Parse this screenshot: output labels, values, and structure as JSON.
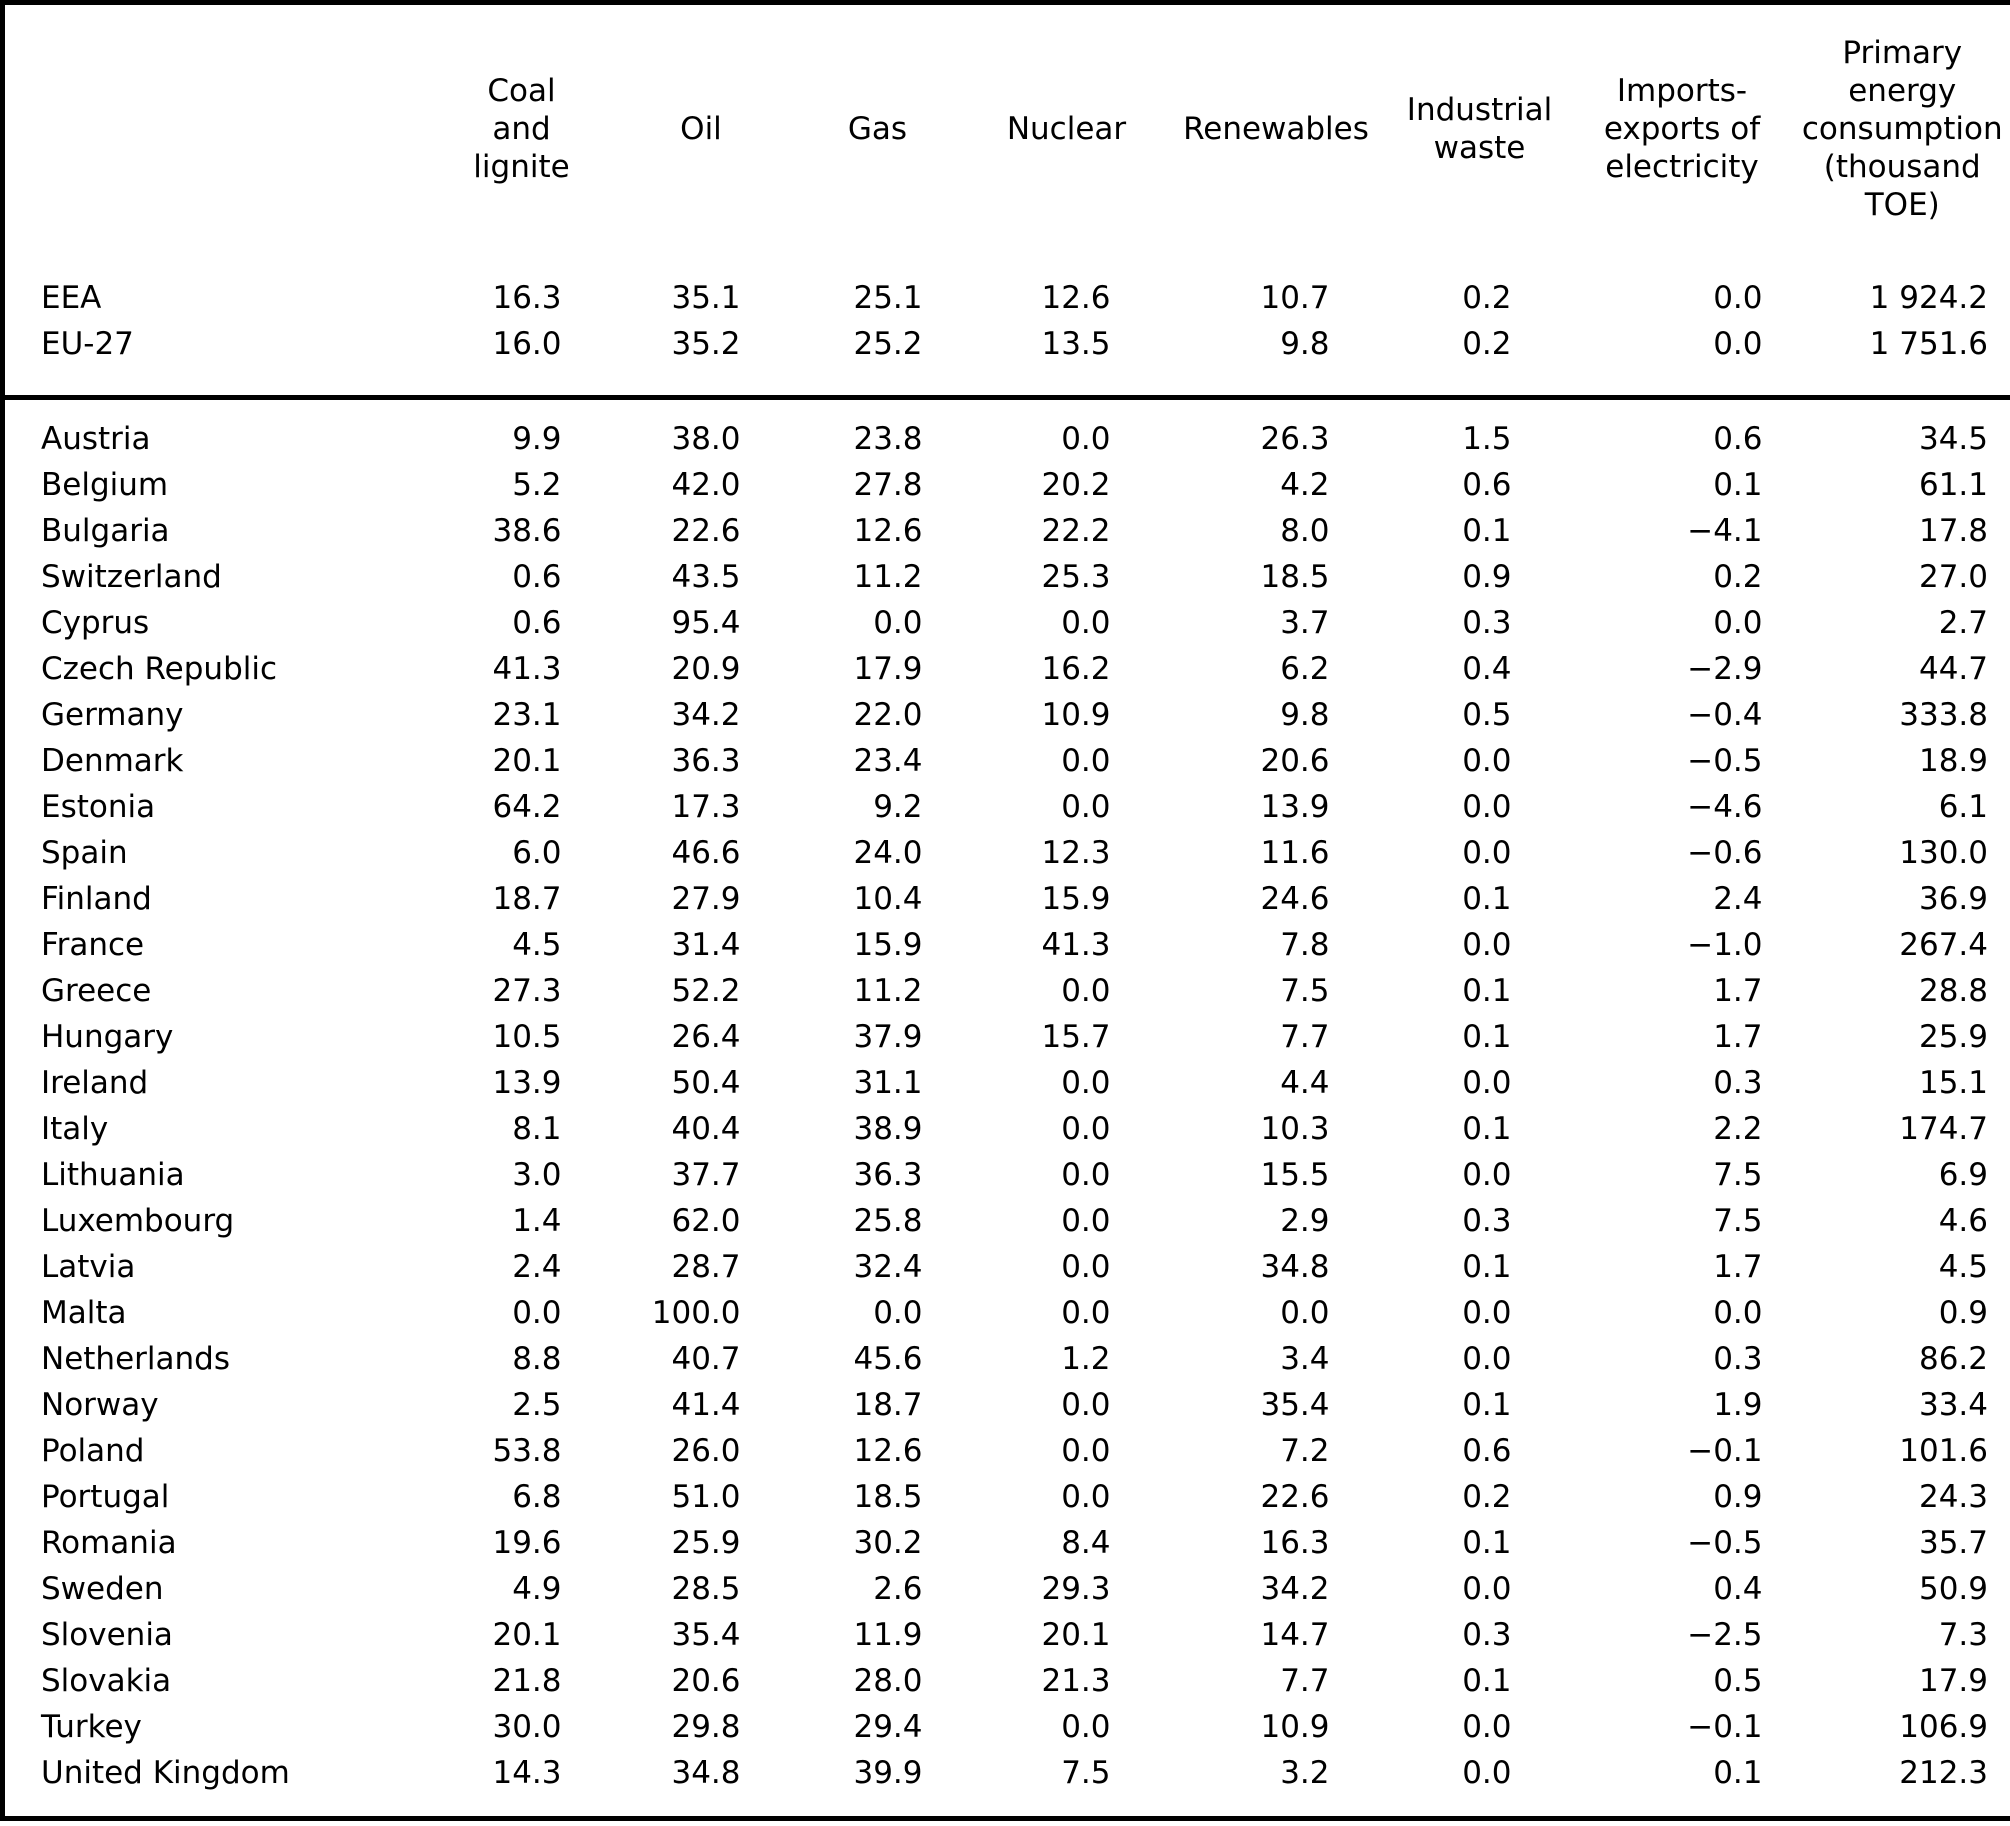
{
  "colors": {
    "background": "#ffffff",
    "border": "#000000",
    "text": "#000000"
  },
  "chart_data": {
    "type": "table",
    "title": "",
    "columns": [
      "",
      "Coal\nand\nlignite",
      "Oil",
      "Gas",
      "Nuclear",
      "Renewables",
      "Industrial\nwaste",
      "Imports-\nexports of\nelectricity",
      "Primary\nenergy\nconsumption\n(thousand\nTOE)"
    ],
    "aggregate_rows": [
      {
        "label": "EEA",
        "values": [
          "16.3",
          "35.1",
          "25.1",
          "12.6",
          "10.7",
          "0.2",
          "0.0",
          "1 924.2"
        ]
      },
      {
        "label": "EU-27",
        "values": [
          "16.0",
          "35.2",
          "25.2",
          "13.5",
          "9.8",
          "0.2",
          "0.0",
          "1 751.6"
        ]
      }
    ],
    "country_rows": [
      {
        "label": "Austria",
        "values": [
          "9.9",
          "38.0",
          "23.8",
          "0.0",
          "26.3",
          "1.5",
          "0.6",
          "34.5"
        ]
      },
      {
        "label": "Belgium",
        "values": [
          "5.2",
          "42.0",
          "27.8",
          "20.2",
          "4.2",
          "0.6",
          "0.1",
          "61.1"
        ]
      },
      {
        "label": "Bulgaria",
        "values": [
          "38.6",
          "22.6",
          "12.6",
          "22.2",
          "8.0",
          "0.1",
          "−4.1",
          "17.8"
        ]
      },
      {
        "label": "Switzerland",
        "values": [
          "0.6",
          "43.5",
          "11.2",
          "25.3",
          "18.5",
          "0.9",
          "0.2",
          "27.0"
        ]
      },
      {
        "label": "Cyprus",
        "values": [
          "0.6",
          "95.4",
          "0.0",
          "0.0",
          "3.7",
          "0.3",
          "0.0",
          "2.7"
        ]
      },
      {
        "label": "Czech Republic",
        "values": [
          "41.3",
          "20.9",
          "17.9",
          "16.2",
          "6.2",
          "0.4",
          "−2.9",
          "44.7"
        ]
      },
      {
        "label": "Germany",
        "values": [
          "23.1",
          "34.2",
          "22.0",
          "10.9",
          "9.8",
          "0.5",
          "−0.4",
          "333.8"
        ]
      },
      {
        "label": "Denmark",
        "values": [
          "20.1",
          "36.3",
          "23.4",
          "0.0",
          "20.6",
          "0.0",
          "−0.5",
          "18.9"
        ]
      },
      {
        "label": "Estonia",
        "values": [
          "64.2",
          "17.3",
          "9.2",
          "0.0",
          "13.9",
          "0.0",
          "−4.6",
          "6.1"
        ]
      },
      {
        "label": "Spain",
        "values": [
          "6.0",
          "46.6",
          "24.0",
          "12.3",
          "11.6",
          "0.0",
          "−0.6",
          "130.0"
        ]
      },
      {
        "label": "Finland",
        "values": [
          "18.7",
          "27.9",
          "10.4",
          "15.9",
          "24.6",
          "0.1",
          "2.4",
          "36.9"
        ]
      },
      {
        "label": "France",
        "values": [
          "4.5",
          "31.4",
          "15.9",
          "41.3",
          "7.8",
          "0.0",
          "−1.0",
          "267.4"
        ]
      },
      {
        "label": "Greece",
        "values": [
          "27.3",
          "52.2",
          "11.2",
          "0.0",
          "7.5",
          "0.1",
          "1.7",
          "28.8"
        ]
      },
      {
        "label": "Hungary",
        "values": [
          "10.5",
          "26.4",
          "37.9",
          "15.7",
          "7.7",
          "0.1",
          "1.7",
          "25.9"
        ]
      },
      {
        "label": "Ireland",
        "values": [
          "13.9",
          "50.4",
          "31.1",
          "0.0",
          "4.4",
          "0.0",
          "0.3",
          "15.1"
        ]
      },
      {
        "label": "Italy",
        "values": [
          "8.1",
          "40.4",
          "38.9",
          "0.0",
          "10.3",
          "0.1",
          "2.2",
          "174.7"
        ]
      },
      {
        "label": "Lithuania",
        "values": [
          "3.0",
          "37.7",
          "36.3",
          "0.0",
          "15.5",
          "0.0",
          "7.5",
          "6.9"
        ]
      },
      {
        "label": "Luxembourg",
        "values": [
          "1.4",
          "62.0",
          "25.8",
          "0.0",
          "2.9",
          "0.3",
          "7.5",
          "4.6"
        ]
      },
      {
        "label": "Latvia",
        "values": [
          "2.4",
          "28.7",
          "32.4",
          "0.0",
          "34.8",
          "0.1",
          "1.7",
          "4.5"
        ]
      },
      {
        "label": "Malta",
        "values": [
          "0.0",
          "100.0",
          "0.0",
          "0.0",
          "0.0",
          "0.0",
          "0.0",
          "0.9"
        ]
      },
      {
        "label": "Netherlands",
        "values": [
          "8.8",
          "40.7",
          "45.6",
          "1.2",
          "3.4",
          "0.0",
          "0.3",
          "86.2"
        ]
      },
      {
        "label": "Norway",
        "values": [
          "2.5",
          "41.4",
          "18.7",
          "0.0",
          "35.4",
          "0.1",
          "1.9",
          "33.4"
        ]
      },
      {
        "label": "Poland",
        "values": [
          "53.8",
          "26.0",
          "12.6",
          "0.0",
          "7.2",
          "0.6",
          "−0.1",
          "101.6"
        ]
      },
      {
        "label": "Portugal",
        "values": [
          "6.8",
          "51.0",
          "18.5",
          "0.0",
          "22.6",
          "0.2",
          "0.9",
          "24.3"
        ]
      },
      {
        "label": "Romania",
        "values": [
          "19.6",
          "25.9",
          "30.2",
          "8.4",
          "16.3",
          "0.1",
          "−0.5",
          "35.7"
        ]
      },
      {
        "label": "Sweden",
        "values": [
          "4.9",
          "28.5",
          "2.6",
          "29.3",
          "34.2",
          "0.0",
          "0.4",
          "50.9"
        ]
      },
      {
        "label": "Slovenia",
        "values": [
          "20.1",
          "35.4",
          "11.9",
          "20.1",
          "14.7",
          "0.3",
          "−2.5",
          "7.3"
        ]
      },
      {
        "label": "Slovakia",
        "values": [
          "21.8",
          "20.6",
          "28.0",
          "21.3",
          "7.7",
          "0.1",
          "0.5",
          "17.9"
        ]
      },
      {
        "label": "Turkey",
        "values": [
          "30.0",
          "29.8",
          "29.4",
          "0.0",
          "10.9",
          "0.0",
          "−0.1",
          "106.9"
        ]
      },
      {
        "label": "United Kingdom",
        "values": [
          "14.3",
          "34.8",
          "39.9",
          "7.5",
          "3.2",
          "0.0",
          "0.1",
          "212.3"
        ]
      }
    ]
  }
}
